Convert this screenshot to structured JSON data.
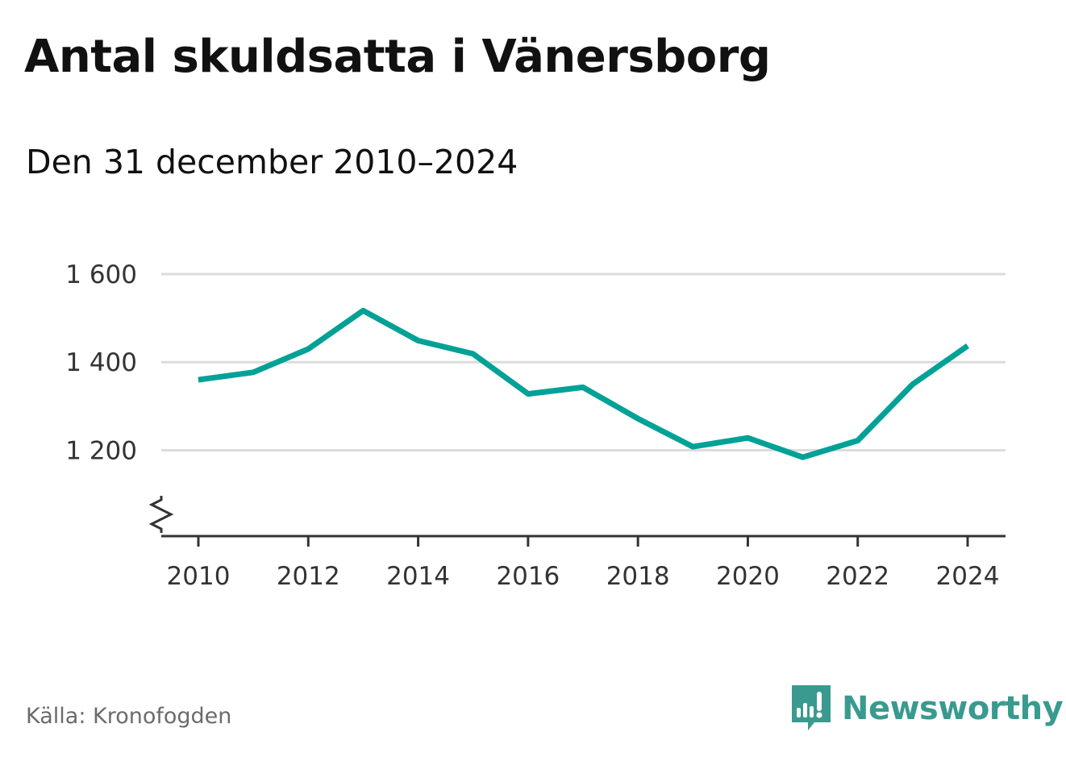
{
  "header": {
    "title": "Antal skuldsatta i Vänersborg",
    "subtitle": "Den 31 december 2010–2024"
  },
  "footer": {
    "source": "Källa: Kronofogden",
    "brand": "Newsworthy",
    "brand_icon": "newsworthy-logo-icon"
  },
  "colors": {
    "line": "#00a196",
    "grid": "#dcdcdc",
    "axis": "#333333",
    "brand": "#3a9a8f",
    "source": "#6b6b6b"
  },
  "chart_data": {
    "type": "line",
    "x": [
      2010,
      2011,
      2012,
      2013,
      2014,
      2015,
      2016,
      2017,
      2018,
      2019,
      2020,
      2021,
      2022,
      2023,
      2024
    ],
    "series": [
      {
        "values": [
          1360,
          1377,
          1430,
          1517,
          1449,
          1419,
          1328,
          1343,
          1272,
          1208,
          1228,
          1184,
          1222,
          1350,
          1437
        ]
      }
    ],
    "xticks": [
      2010,
      2012,
      2014,
      2016,
      2018,
      2020,
      2022,
      2024
    ],
    "xtick_labels": [
      "2010",
      "2012",
      "2014",
      "2016",
      "2018",
      "2020",
      "2022",
      "2024"
    ],
    "yticks": [
      1200,
      1400,
      1600
    ],
    "ytick_labels": [
      "1 200",
      "1 400",
      "1 600"
    ],
    "ylim": [
      1005,
      1600
    ],
    "y_axis_break": true,
    "grid": true,
    "xlabel": "",
    "ylabel": ""
  }
}
